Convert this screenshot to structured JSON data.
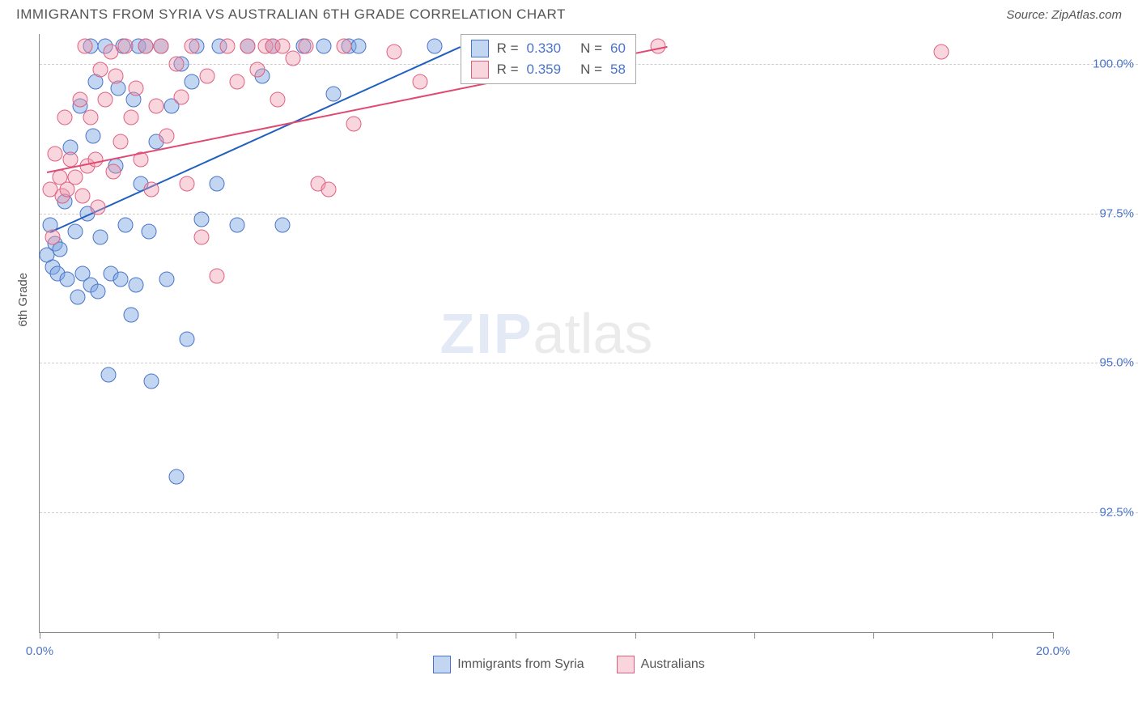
{
  "title": "IMMIGRANTS FROM SYRIA VS AUSTRALIAN 6TH GRADE CORRELATION CHART",
  "source_label": "Source: ",
  "source_name": "ZipAtlas.com",
  "chart": {
    "type": "scatter",
    "ylabel": "6th Grade",
    "xlim": [
      0,
      20
    ],
    "ylim": [
      90.5,
      100.5
    ],
    "xtick_positions": [
      0,
      2.35,
      4.7,
      7.05,
      9.4,
      11.75,
      14.1,
      16.45,
      18.8,
      20
    ],
    "xtick_labels": {
      "0": "0.0%",
      "20": "20.0%"
    },
    "ytick_positions": [
      92.5,
      95.0,
      97.5,
      100.0
    ],
    "ytick_labels": [
      "92.5%",
      "95.0%",
      "97.5%",
      "100.0%"
    ],
    "background_color": "#ffffff",
    "grid_color": "#cccccc",
    "axis_color": "#888888",
    "marker_radius": 9.5,
    "series": [
      {
        "name": "Immigrants from Syria",
        "fill": "rgba(120, 165, 225, 0.45)",
        "stroke": "#4a74c9",
        "line_color": "#1f5fbf",
        "R": "0.330",
        "N": "60",
        "trend": {
          "x1": 0.2,
          "y1": 97.2,
          "x2": 8.3,
          "y2": 100.3
        },
        "points": [
          [
            0.15,
            96.8
          ],
          [
            0.2,
            97.3
          ],
          [
            0.25,
            96.6
          ],
          [
            0.3,
            97.0
          ],
          [
            0.35,
            96.5
          ],
          [
            0.4,
            96.9
          ],
          [
            0.5,
            97.7
          ],
          [
            0.55,
            96.4
          ],
          [
            0.6,
            98.6
          ],
          [
            0.7,
            97.2
          ],
          [
            0.75,
            96.1
          ],
          [
            0.8,
            99.3
          ],
          [
            0.85,
            96.5
          ],
          [
            0.95,
            97.5
          ],
          [
            1.0,
            96.3
          ],
          [
            1.0,
            100.3
          ],
          [
            1.05,
            98.8
          ],
          [
            1.1,
            99.7
          ],
          [
            1.15,
            96.2
          ],
          [
            1.2,
            97.1
          ],
          [
            1.3,
            100.3
          ],
          [
            1.35,
            94.8
          ],
          [
            1.4,
            96.5
          ],
          [
            1.5,
            98.3
          ],
          [
            1.55,
            99.6
          ],
          [
            1.6,
            96.4
          ],
          [
            1.65,
            100.3
          ],
          [
            1.7,
            97.3
          ],
          [
            1.8,
            95.8
          ],
          [
            1.85,
            99.4
          ],
          [
            1.9,
            96.3
          ],
          [
            1.95,
            100.3
          ],
          [
            2.0,
            98.0
          ],
          [
            2.1,
            100.3
          ],
          [
            2.15,
            97.2
          ],
          [
            2.2,
            94.7
          ],
          [
            2.3,
            98.7
          ],
          [
            2.4,
            100.3
          ],
          [
            2.5,
            96.4
          ],
          [
            2.6,
            99.3
          ],
          [
            2.7,
            93.1
          ],
          [
            2.8,
            100.0
          ],
          [
            2.9,
            95.4
          ],
          [
            3.0,
            99.7
          ],
          [
            3.1,
            100.3
          ],
          [
            3.2,
            97.4
          ],
          [
            3.5,
            98.0
          ],
          [
            3.55,
            100.3
          ],
          [
            3.9,
            97.3
          ],
          [
            4.1,
            100.3
          ],
          [
            4.4,
            99.8
          ],
          [
            4.6,
            100.3
          ],
          [
            4.8,
            97.3
          ],
          [
            5.2,
            100.3
          ],
          [
            5.6,
            100.3
          ],
          [
            5.8,
            99.5
          ],
          [
            6.1,
            100.3
          ],
          [
            6.3,
            100.3
          ],
          [
            7.8,
            100.3
          ],
          [
            9.0,
            100.3
          ]
        ]
      },
      {
        "name": "Australians",
        "fill": "rgba(240, 150, 170, 0.40)",
        "stroke": "#e06080",
        "line_color": "#e04a72",
        "R": "0.359",
        "N": "58",
        "trend": {
          "x1": 0.15,
          "y1": 98.2,
          "x2": 12.4,
          "y2": 100.3
        },
        "points": [
          [
            0.2,
            97.9
          ],
          [
            0.25,
            97.1
          ],
          [
            0.3,
            98.5
          ],
          [
            0.4,
            98.1
          ],
          [
            0.45,
            97.8
          ],
          [
            0.5,
            99.1
          ],
          [
            0.55,
            97.9
          ],
          [
            0.6,
            98.4
          ],
          [
            0.7,
            98.1
          ],
          [
            0.8,
            99.4
          ],
          [
            0.85,
            97.8
          ],
          [
            0.9,
            100.3
          ],
          [
            0.95,
            98.3
          ],
          [
            1.0,
            99.1
          ],
          [
            1.1,
            98.4
          ],
          [
            1.15,
            97.6
          ],
          [
            1.2,
            99.9
          ],
          [
            1.3,
            99.4
          ],
          [
            1.4,
            100.2
          ],
          [
            1.45,
            98.2
          ],
          [
            1.5,
            99.8
          ],
          [
            1.6,
            98.7
          ],
          [
            1.7,
            100.3
          ],
          [
            1.8,
            99.1
          ],
          [
            1.9,
            99.6
          ],
          [
            2.0,
            98.4
          ],
          [
            2.1,
            100.3
          ],
          [
            2.2,
            97.9
          ],
          [
            2.3,
            99.3
          ],
          [
            2.4,
            100.3
          ],
          [
            2.5,
            98.8
          ],
          [
            2.7,
            100.0
          ],
          [
            2.8,
            99.45
          ],
          [
            2.9,
            98.0
          ],
          [
            3.0,
            100.3
          ],
          [
            3.2,
            97.1
          ],
          [
            3.3,
            99.8
          ],
          [
            3.5,
            96.45
          ],
          [
            3.7,
            100.3
          ],
          [
            3.9,
            99.7
          ],
          [
            4.1,
            100.3
          ],
          [
            4.3,
            99.9
          ],
          [
            4.45,
            100.3
          ],
          [
            4.6,
            100.3
          ],
          [
            4.7,
            99.4
          ],
          [
            4.8,
            100.3
          ],
          [
            5.0,
            100.1
          ],
          [
            5.25,
            100.3
          ],
          [
            5.5,
            98.0
          ],
          [
            5.7,
            97.9
          ],
          [
            6.0,
            100.3
          ],
          [
            6.2,
            99.0
          ],
          [
            7.0,
            100.2
          ],
          [
            7.5,
            99.7
          ],
          [
            9.95,
            100.0
          ],
          [
            11.0,
            100.3
          ],
          [
            12.2,
            100.3
          ],
          [
            17.8,
            100.2
          ]
        ]
      }
    ],
    "stat_box": {
      "top_pct": 0,
      "left_x": 8.3
    },
    "watermark": {
      "zip": "ZIP",
      "atlas": "atlas"
    },
    "legend_labels": {
      "s1": "Immigrants from Syria",
      "s2": "Australians"
    }
  }
}
